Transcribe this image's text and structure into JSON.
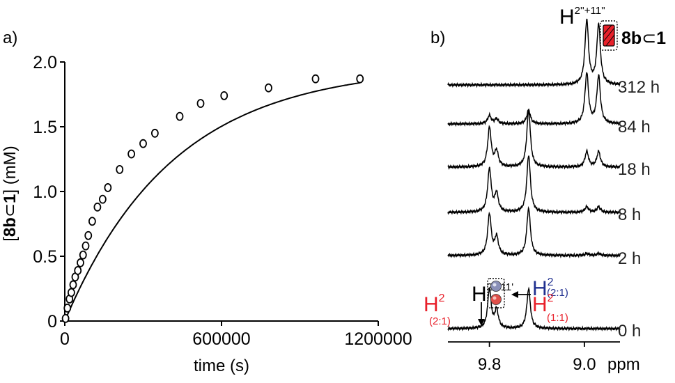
{
  "chart_data": [
    {
      "panel": "a)",
      "type": "scatter",
      "xlabel": "time (s)",
      "ylabel": {
        "open": "[",
        "bold": "8b",
        "symbol": "⊂",
        "bold2": "1",
        "close": "]",
        "unit": " (mM)"
      },
      "xlim": [
        0,
        1200000
      ],
      "ylim": [
        0,
        2.0
      ],
      "x_ticks": [
        0,
        600000,
        1200000
      ],
      "x_tick_labels": [
        "0",
        "600000",
        "1200000"
      ],
      "y_ticks": [
        0,
        0.5,
        1.0,
        1.5,
        2.0
      ],
      "y_tick_labels": [
        "0",
        "0.5",
        "1.0",
        "1.5",
        "2.0"
      ],
      "grid": false,
      "series": [
        {
          "marker": "open-circle",
          "points": [
            [
              3000,
              0.02
            ],
            [
              10000,
              0.1
            ],
            [
              18000,
              0.17
            ],
            [
              25000,
              0.22
            ],
            [
              32000,
              0.28
            ],
            [
              40000,
              0.34
            ],
            [
              50000,
              0.39
            ],
            [
              60000,
              0.45
            ],
            [
              70000,
              0.51
            ],
            [
              80000,
              0.58
            ],
            [
              90000,
              0.66
            ],
            [
              105000,
              0.77
            ],
            [
              125000,
              0.88
            ],
            [
              145000,
              0.94
            ],
            [
              165000,
              1.03
            ],
            [
              210000,
              1.17
            ],
            [
              255000,
              1.29
            ],
            [
              300000,
              1.37
            ],
            [
              345000,
              1.45
            ],
            [
              440000,
              1.58
            ],
            [
              520000,
              1.68
            ],
            [
              610000,
              1.74
            ],
            [
              780000,
              1.8
            ],
            [
              960000,
              1.87
            ],
            [
              1130000,
              1.87
            ]
          ]
        },
        {
          "type": "line",
          "fit": {
            "a": 1.97,
            "k": 2.4e-06
          }
        }
      ]
    },
    {
      "panel": "b)",
      "type": "line",
      "x_reversed": true,
      "xlim": [
        10.15,
        8.7
      ],
      "x_ticks": [
        9.8,
        9.0
      ],
      "x_tick_labels": [
        "9.8",
        "9.0"
      ],
      "x_unit": "ppm",
      "grid": false,
      "peak_positions": {
        "H2_2_1": 9.8,
        "H_prime": 9.74,
        "H2_mixed": 9.47,
        "H2pp_a": 8.98,
        "H2pp_b": 8.88
      },
      "series": [
        {
          "name": "312 h",
          "peaks": [
            [
              8.98,
              0.92
            ],
            [
              8.88,
              0.86
            ]
          ]
        },
        {
          "name": "84 h",
          "peaks": [
            [
              9.8,
              0.12
            ],
            [
              9.74,
              0.07
            ],
            [
              9.47,
              0.2
            ],
            [
              8.98,
              0.72
            ],
            [
              8.88,
              0.68
            ]
          ]
        },
        {
          "name": "18 h",
          "peaks": [
            [
              9.8,
              0.56
            ],
            [
              9.74,
              0.22
            ],
            [
              9.47,
              0.82
            ],
            [
              8.98,
              0.22
            ],
            [
              8.88,
              0.22
            ]
          ]
        },
        {
          "name": "8 h",
          "peaks": [
            [
              9.8,
              0.62
            ],
            [
              9.74,
              0.26
            ],
            [
              9.47,
              0.82
            ],
            [
              8.98,
              0.08
            ],
            [
              8.88,
              0.08
            ]
          ]
        },
        {
          "name": "2 h",
          "peaks": [
            [
              9.8,
              0.59
            ],
            [
              9.74,
              0.26
            ],
            [
              9.47,
              0.68
            ],
            [
              8.98,
              0.03
            ],
            [
              8.88,
              0.03
            ]
          ]
        },
        {
          "name": "0 h",
          "peaks": [
            [
              9.8,
              0.56
            ],
            [
              9.74,
              0.26
            ],
            [
              9.47,
              0.57
            ]
          ]
        }
      ],
      "annotations": {
        "top": {
          "H": "H",
          "sup": "2''+11''"
        },
        "legend_label": {
          "bold": "8b",
          "symbol": "⊂",
          "bold2": "1"
        },
        "h_red": {
          "H": "H",
          "sup": "2",
          "sub": "(2:1)"
        },
        "h_mid": {
          "H": "H",
          "sup": "2'+11'"
        },
        "h_right_blue": {
          "H": "H",
          "sup": "2",
          "sub": "(2:1)"
        },
        "h_right_red": {
          "H": "H",
          "sup": "2",
          "sub": "(1:1)"
        }
      }
    }
  ],
  "colors": {
    "red": "#e8202a",
    "blue": "#1f2f8f",
    "black": "#000000"
  }
}
